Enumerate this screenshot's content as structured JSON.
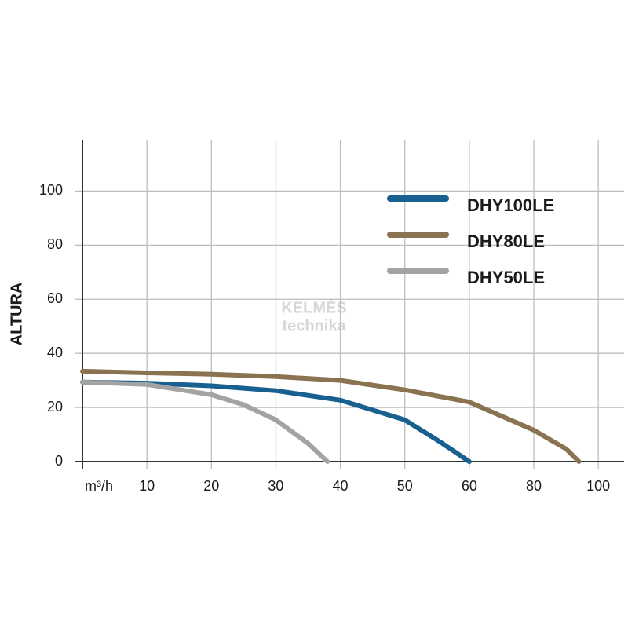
{
  "chart_data": {
    "type": "line",
    "xlabel": "m³/h",
    "ylabel": "ALTURA",
    "watermark": [
      "KELMĖS",
      "technika"
    ],
    "xlim": [
      0,
      108
    ],
    "xticks": [
      10,
      20,
      30,
      40,
      50,
      60,
      80,
      100
    ],
    "ylim": [
      0,
      119
    ],
    "yticks": [
      0,
      20,
      40,
      60,
      80,
      100
    ],
    "grid": true,
    "legend": "upper right",
    "series": [
      {
        "name": "DHY100LE",
        "color": "#17608f",
        "x": [
          0,
          10,
          20,
          30,
          40,
          50,
          55,
          60
        ],
        "values": [
          29.4,
          29,
          28,
          26.2,
          22.7,
          15.4,
          8,
          0
        ]
      },
      {
        "name": "DHY80LE",
        "color": "#8a7350",
        "x": [
          0,
          10,
          20,
          30,
          40,
          50,
          60,
          80,
          90,
          94
        ],
        "values": [
          33.4,
          32.8,
          32.3,
          31.4,
          30,
          26.5,
          22,
          11.6,
          4.7,
          0
        ]
      },
      {
        "name": "DHY50LE",
        "color": "#a3a3a3",
        "x": [
          0,
          10,
          20,
          25,
          30,
          35,
          38
        ],
        "values": [
          29.4,
          28.5,
          24.7,
          21,
          15.4,
          6.7,
          0
        ]
      }
    ]
  }
}
